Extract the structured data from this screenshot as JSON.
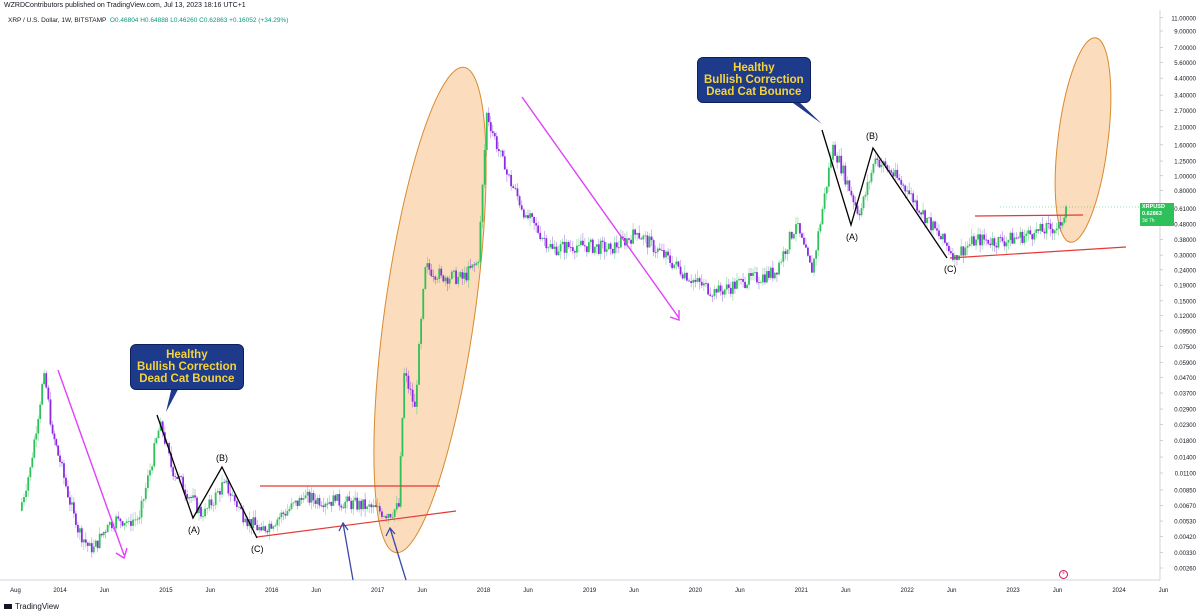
{
  "header": {
    "publisher_line": "WZRDContributors published on TradingView.com, Jul 13, 2023 18:16 UTC+1",
    "symbol": "XRP / U.S. Dollar, 1W, BITSTAMP",
    "ohlc": "O0.46804  H0.64888  L0.46260  C0.62863  +0.16052 (+34.29%)"
  },
  "footer": {
    "brand": "TradingView"
  },
  "price_tag": {
    "symbol": "XRPUSD",
    "price": "0.62863",
    "countdown": "3d 7h"
  },
  "callouts": [
    {
      "line1": "Healthy",
      "line2": "Bullish Correction",
      "line3": "Dead Cat Bounce"
    },
    {
      "line1": "Healthy",
      "line2": "Bullish Correction",
      "line3": "Dead Cat Bounce"
    }
  ],
  "wave_labels": [
    "(A)",
    "(B)",
    "(C)",
    "(A)",
    "(B)",
    "(C)"
  ],
  "colors": {
    "up": "#2ec05a",
    "down": "#8a2be2",
    "wave": "#000000",
    "trend_red": "#e53935",
    "magenta_arrow": "#e040fb",
    "blue_arrow": "#3949ab",
    "ellipse_fill": "#f6b26b",
    "ellipse_stroke": "#d98a2e"
  },
  "chart_data": {
    "type": "line",
    "title": "XRP / U.S. Dollar, 1W, BITSTAMP",
    "scale": "log",
    "xlabel": "",
    "ylabel": "",
    "x_ticks": [
      "Aug",
      "2014",
      "Jun",
      "2015",
      "Jun",
      "2016",
      "Jun",
      "2017",
      "Jun",
      "2018",
      "Jun",
      "2019",
      "Jun",
      "2020",
      "Jun",
      "2021",
      "Jun",
      "2022",
      "Jun",
      "2023",
      "Jun",
      "2024",
      "Jun"
    ],
    "y_ticks": [
      "11.00000",
      "9.00000",
      "7.00000",
      "5.60000",
      "4.40000",
      "3.40000",
      "2.70000",
      "2.10000",
      "1.60000",
      "1.25000",
      "1.00000",
      "0.80000",
      "0.61000",
      "0.48000",
      "0.38000",
      "0.30000",
      "0.24000",
      "0.19000",
      "0.15000",
      "0.12000",
      "0.09500",
      "0.07500",
      "0.05900",
      "0.04700",
      "0.03700",
      "0.02900",
      "0.02300",
      "0.01800",
      "0.01400",
      "0.01100",
      "0.00850",
      "0.00670",
      "0.00530",
      "0.00420",
      "0.00330",
      "0.00260"
    ],
    "series": [
      {
        "name": "XRPUSD",
        "x": [
          2013.62,
          2013.72,
          2013.85,
          2013.93,
          2014.0,
          2014.15,
          2014.3,
          2014.45,
          2014.55,
          2014.65,
          2014.75,
          2014.95,
          2015.05,
          2015.35,
          2015.55,
          2015.75,
          2015.9,
          2016.3,
          2016.6,
          2016.9,
          2017.1,
          2017.2,
          2017.25,
          2017.35,
          2017.45,
          2017.6,
          2017.8,
          2017.95,
          2018.03,
          2018.2,
          2018.4,
          2018.65,
          2018.9,
          2019.2,
          2019.45,
          2019.8,
          2020.0,
          2020.2,
          2020.45,
          2020.75,
          2020.95,
          2021.1,
          2021.3,
          2021.55,
          2021.7,
          2021.85,
          2022.0,
          2022.3,
          2022.45,
          2022.65,
          2022.9,
          2023.2,
          2023.45,
          2023.5
        ],
        "y": [
          0.0062,
          0.012,
          0.05,
          0.02,
          0.013,
          0.005,
          0.0033,
          0.005,
          0.0055,
          0.0053,
          0.0056,
          0.024,
          0.012,
          0.0057,
          0.0095,
          0.0055,
          0.0046,
          0.0075,
          0.0072,
          0.0066,
          0.0059,
          0.0066,
          0.05,
          0.03,
          0.25,
          0.22,
          0.21,
          0.27,
          2.6,
          1.1,
          0.55,
          0.33,
          0.35,
          0.33,
          0.42,
          0.26,
          0.2,
          0.17,
          0.2,
          0.23,
          0.48,
          0.23,
          1.6,
          0.55,
          1.3,
          1.05,
          0.8,
          0.4,
          0.3,
          0.38,
          0.37,
          0.42,
          0.47,
          0.62863
        ]
      }
    ],
    "ylim": [
      0.0022,
      13.0
    ],
    "grid": false,
    "legend": "none"
  }
}
